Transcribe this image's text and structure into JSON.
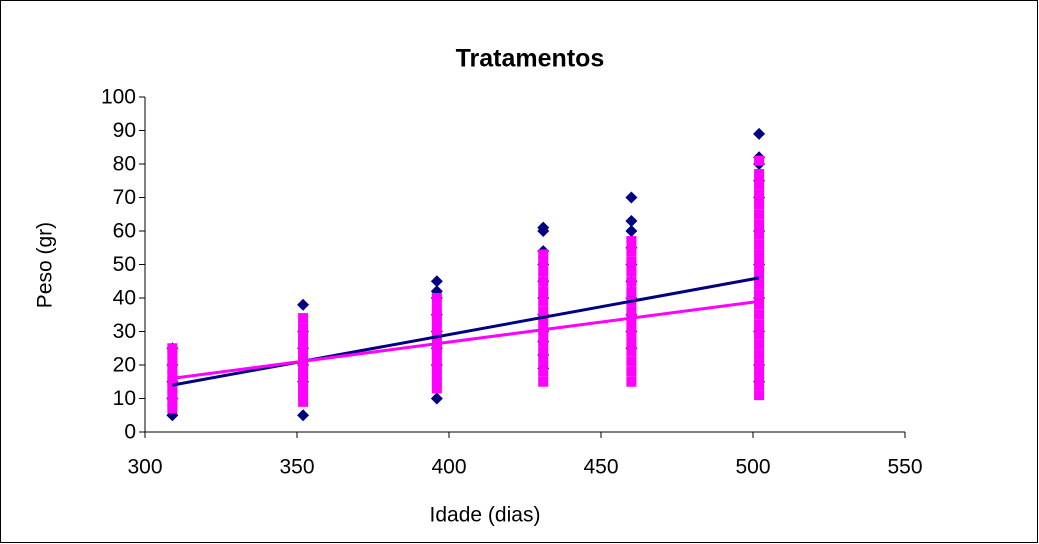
{
  "chart_data": {
    "type": "scatter",
    "title": "Tratamentos",
    "x_label": "Idade (dias)",
    "y_label": "Peso (gr)",
    "xlim": [
      300,
      550
    ],
    "xticks": [
      300,
      350,
      400,
      450,
      500,
      550
    ],
    "ylim": [
      0,
      100
    ],
    "yticks": [
      0,
      10,
      20,
      30,
      40,
      50,
      60,
      70,
      80,
      90,
      100
    ],
    "grid": false,
    "series": [
      {
        "color": "#000080",
        "marker": "diamond",
        "x": [
          309,
          309,
          309,
          309,
          309,
          352,
          352,
          352,
          352,
          352,
          352,
          396,
          396,
          396,
          396,
          396,
          396,
          396,
          396,
          431,
          431,
          431,
          431,
          431,
          431,
          431,
          431,
          431,
          431,
          431,
          460,
          460,
          460,
          460,
          460,
          460,
          460,
          460,
          460,
          460,
          502,
          502,
          502,
          502,
          502,
          502,
          502,
          502,
          502,
          502,
          502
        ],
        "y": [
          5,
          10,
          15,
          20,
          25,
          5,
          15,
          20,
          25,
          30,
          38,
          10,
          20,
          25,
          30,
          35,
          40,
          42,
          45,
          19,
          23,
          27,
          30,
          35,
          40,
          45,
          50,
          54,
          60,
          61,
          25,
          30,
          35,
          40,
          45,
          50,
          55,
          60,
          63,
          70,
          15,
          20,
          30,
          40,
          50,
          60,
          70,
          75,
          80,
          82,
          89
        ]
      },
      {
        "color": "#ff00ff",
        "marker": "square",
        "x": [
          309,
          309,
          309,
          309,
          309,
          309,
          309,
          309,
          309,
          309,
          352,
          352,
          352,
          352,
          352,
          352,
          352,
          352,
          352,
          352,
          352,
          352,
          352,
          396,
          396,
          396,
          396,
          396,
          396,
          396,
          396,
          396,
          396,
          396,
          396,
          396,
          396,
          431,
          431,
          431,
          431,
          431,
          431,
          431,
          431,
          431,
          431,
          431,
          431,
          431,
          431,
          460,
          460,
          460,
          460,
          460,
          460,
          460,
          460,
          460,
          460,
          460,
          460,
          460,
          460,
          460,
          502,
          502,
          502,
          502,
          502,
          502,
          502,
          502,
          502,
          502,
          502,
          502,
          502,
          502,
          502,
          502,
          502,
          502,
          502,
          502,
          502,
          502,
          502,
          502
        ],
        "y": [
          7,
          9,
          11,
          13,
          15,
          17,
          19,
          21,
          23,
          25,
          9,
          11,
          13,
          15,
          17,
          19,
          21,
          23,
          25,
          27,
          29,
          31,
          34,
          13,
          15,
          17,
          19,
          21,
          23,
          25,
          27,
          29,
          31,
          33,
          35,
          37,
          40,
          15,
          18,
          21,
          24,
          27,
          30,
          33,
          36,
          39,
          42,
          45,
          48,
          51,
          53,
          15,
          18,
          21,
          24,
          27,
          30,
          33,
          36,
          39,
          42,
          45,
          48,
          51,
          54,
          57,
          11,
          14,
          17,
          20,
          23,
          26,
          29,
          32,
          35,
          38,
          41,
          44,
          47,
          50,
          53,
          56,
          59,
          62,
          65,
          68,
          71,
          74,
          77,
          81
        ]
      }
    ],
    "trendlines": [
      {
        "color": "#000080",
        "x": [
          309,
          502
        ],
        "y": [
          14,
          46
        ]
      },
      {
        "color": "#ff00ff",
        "x": [
          309,
          502
        ],
        "y": [
          16,
          39
        ]
      }
    ]
  }
}
